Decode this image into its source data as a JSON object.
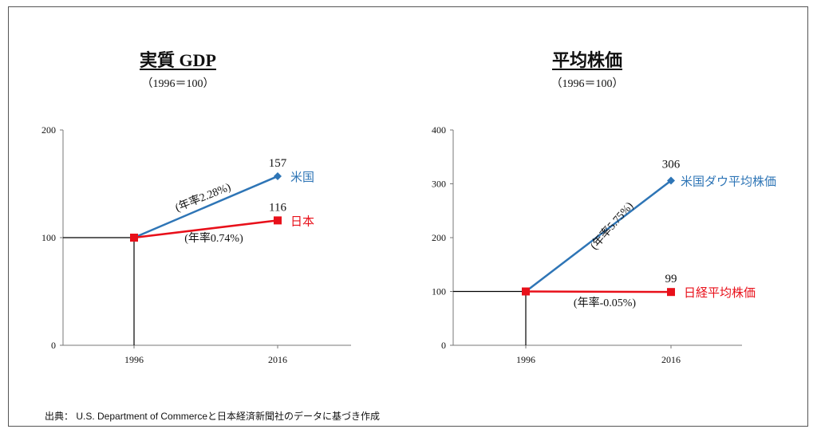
{
  "source_note": "出典： U.S. Department of Commerceと日本経済新聞社のデータに基づき作成",
  "chart_data": [
    {
      "type": "line",
      "title": "実質 GDP",
      "subtitle": "（1996＝100）",
      "categories": [
        "1996",
        "2016"
      ],
      "ylim": [
        0,
        200
      ],
      "yticks": [
        0,
        100,
        200
      ],
      "series": [
        {
          "name": "米国",
          "values": [
            100,
            157
          ],
          "end_label": "157",
          "rate_label": "(年率2.28%)",
          "color": "#2e75b6",
          "marker": "diamond"
        },
        {
          "name": "日本",
          "values": [
            100,
            116
          ],
          "end_label": "116",
          "rate_label": "(年率0.74%)",
          "color": "#e8101a",
          "marker": "square"
        }
      ]
    },
    {
      "type": "line",
      "title": "平均株価",
      "subtitle": "（1996＝100）",
      "categories": [
        "1996",
        "2016"
      ],
      "ylim": [
        0,
        400
      ],
      "yticks": [
        0,
        100,
        200,
        300,
        400
      ],
      "series": [
        {
          "name": "米国ダウ平均株価",
          "values": [
            100,
            306
          ],
          "end_label": "306",
          "rate_label": "(年率5.75%)",
          "color": "#2e75b6",
          "marker": "diamond"
        },
        {
          "name": "日経平均株価",
          "values": [
            100,
            99
          ],
          "end_label": "99",
          "rate_label": "(年率-0.05%)",
          "color": "#e8101a",
          "marker": "square"
        }
      ]
    }
  ]
}
